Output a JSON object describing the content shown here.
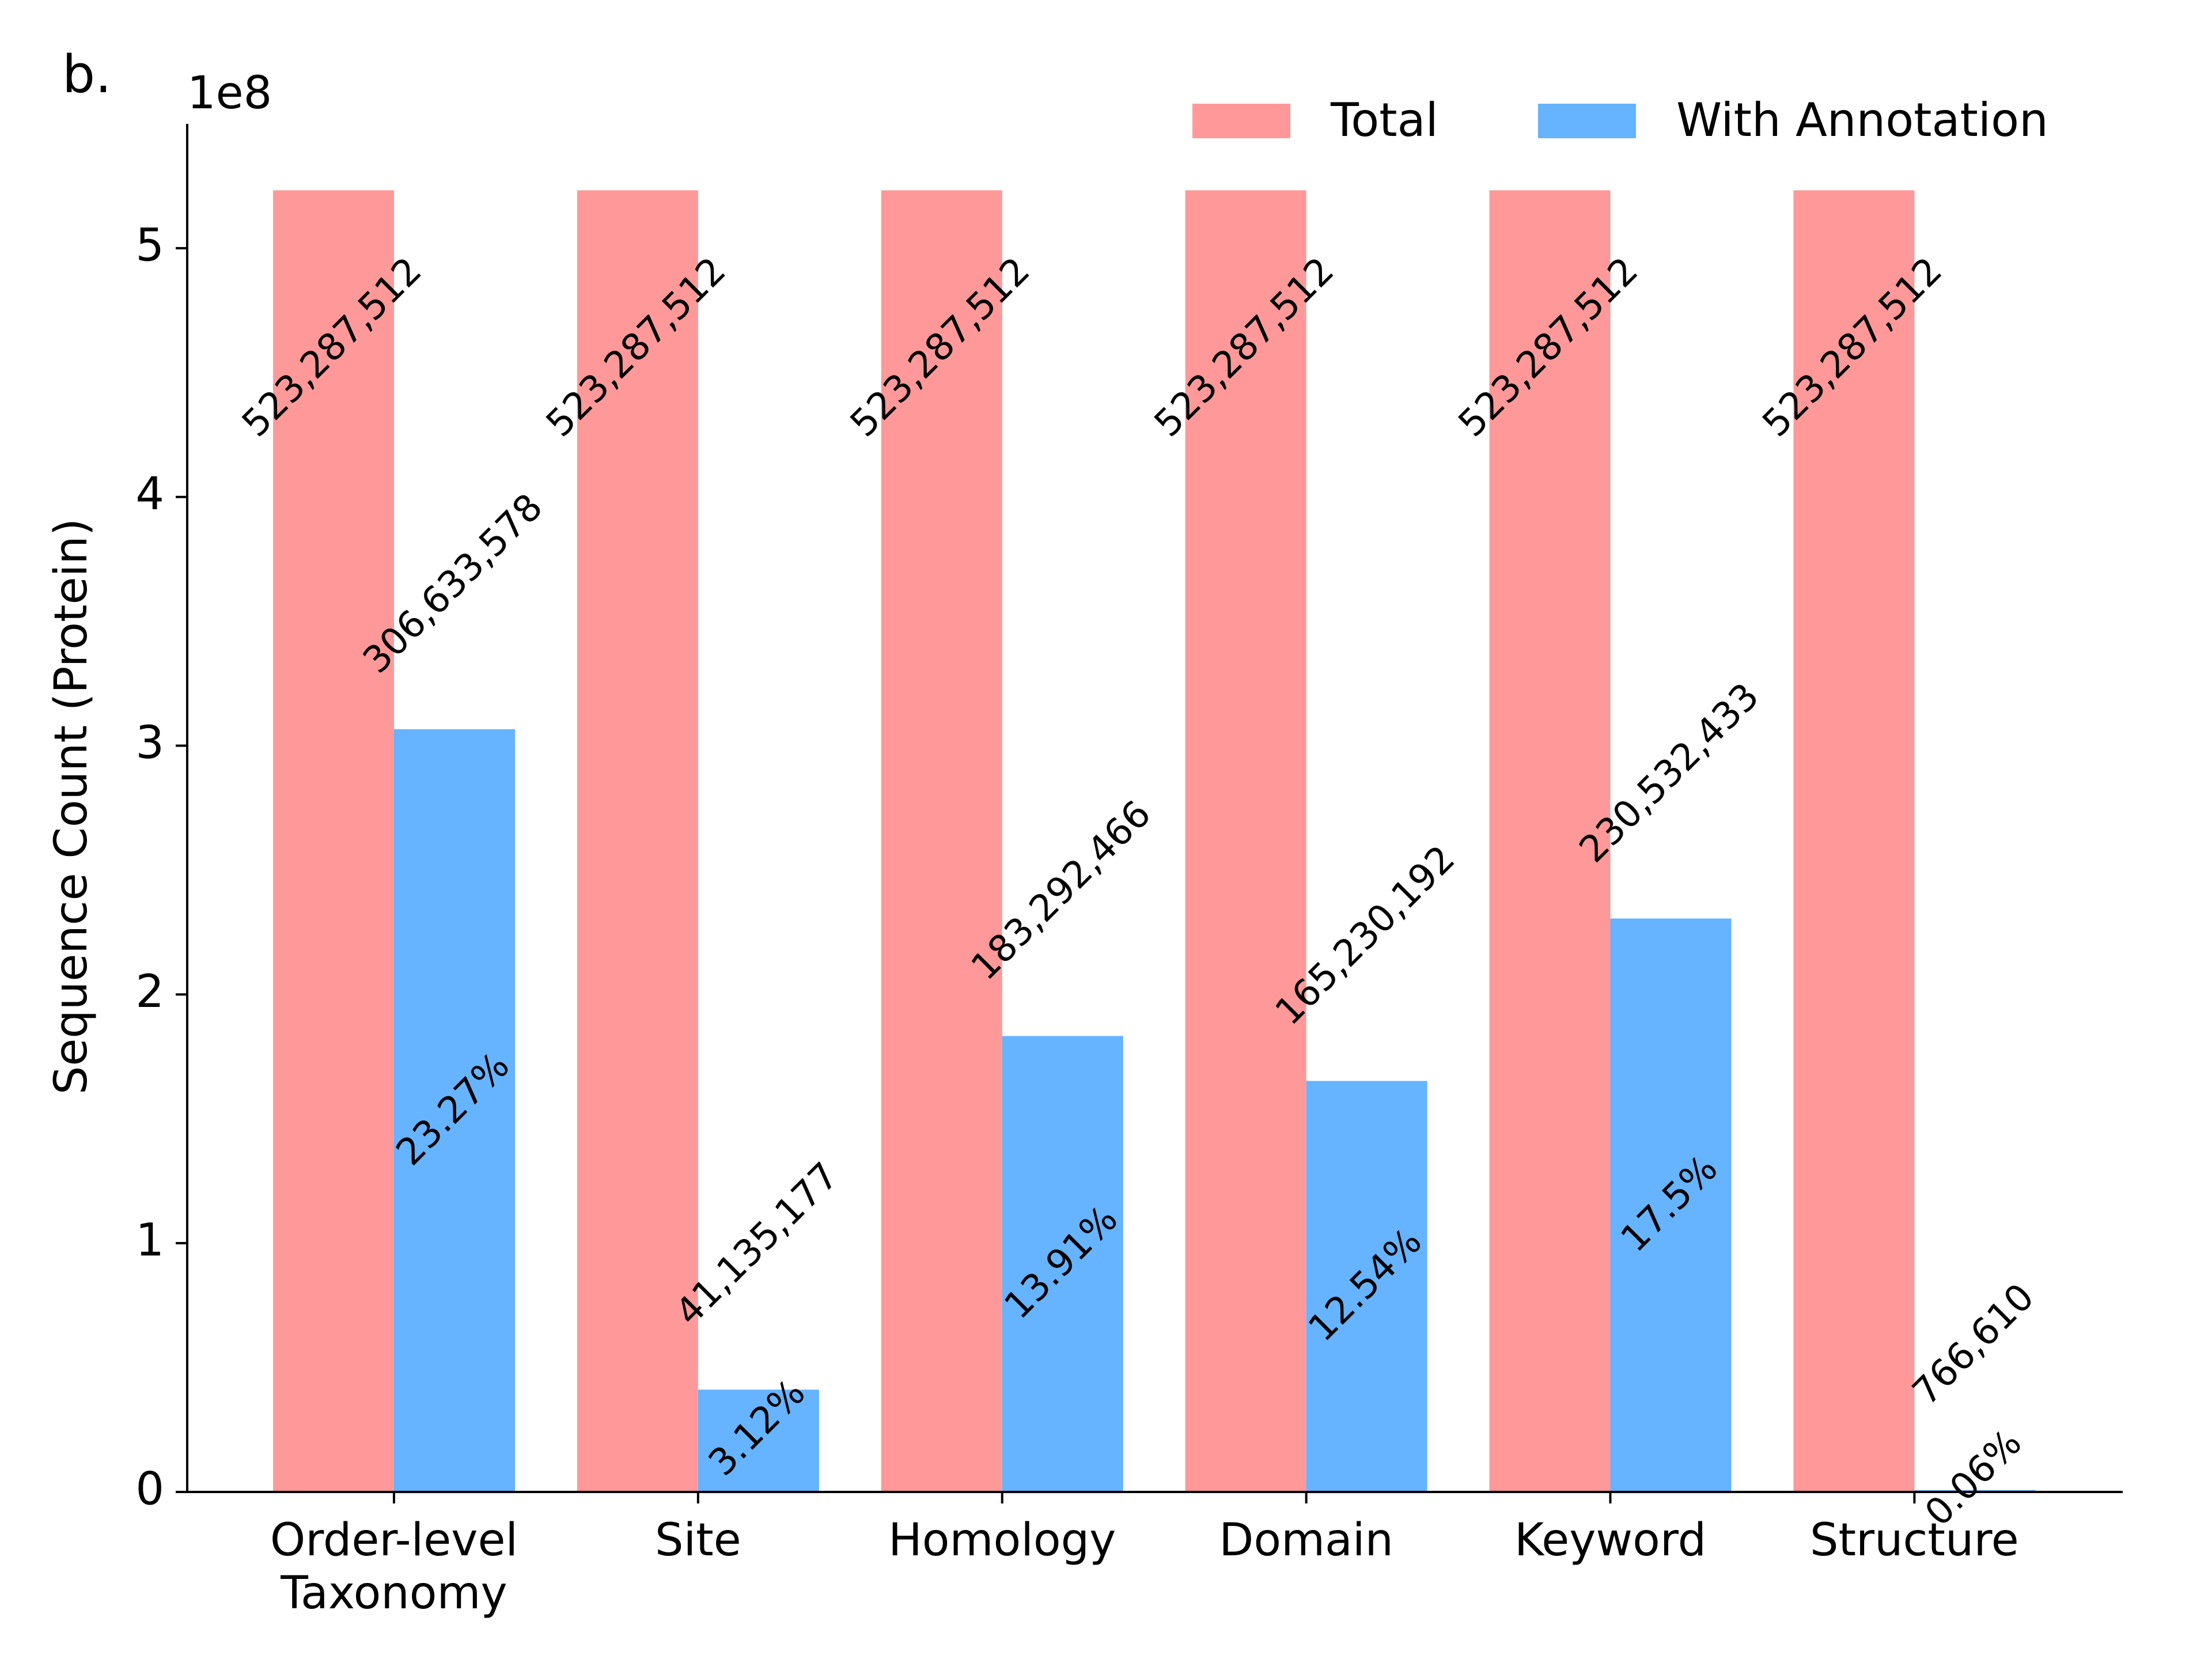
{
  "panel_label": "b.",
  "chart_data": {
    "type": "bar",
    "categories": [
      "Order-level\nTaxonomy",
      "Site",
      "Homology",
      "Domain",
      "Keyword",
      "Structure"
    ],
    "series": [
      {
        "name": "Total",
        "color": "#ff9999",
        "values": [
          523287512,
          523287512,
          523287512,
          523287512,
          523287512,
          523287512
        ],
        "labels": [
          "523,287,512",
          "523,287,512",
          "523,287,512",
          "523,287,512",
          "523,287,512",
          "523,287,512"
        ]
      },
      {
        "name": "With Annotation",
        "color": "#66b3ff",
        "values": [
          306633578,
          41135177,
          183292466,
          165230192,
          230532433,
          766610
        ],
        "labels": [
          "306,633,578",
          "41,135,177",
          "183,292,466",
          "165,230,192",
          "230,532,433",
          "766,610"
        ],
        "percent_labels": [
          "23.27%",
          "3.12%",
          "13.91%",
          "12.54%",
          "17.5%",
          "0.06%"
        ]
      }
    ],
    "ylabel": "Sequence Count (Protein)",
    "xlabel": "",
    "y_offset_label": "1e8",
    "yticks": [
      0,
      1,
      2,
      3,
      4,
      5
    ],
    "ylim": [
      0,
      5.5
    ],
    "legend": "top-right",
    "grid": false
  }
}
